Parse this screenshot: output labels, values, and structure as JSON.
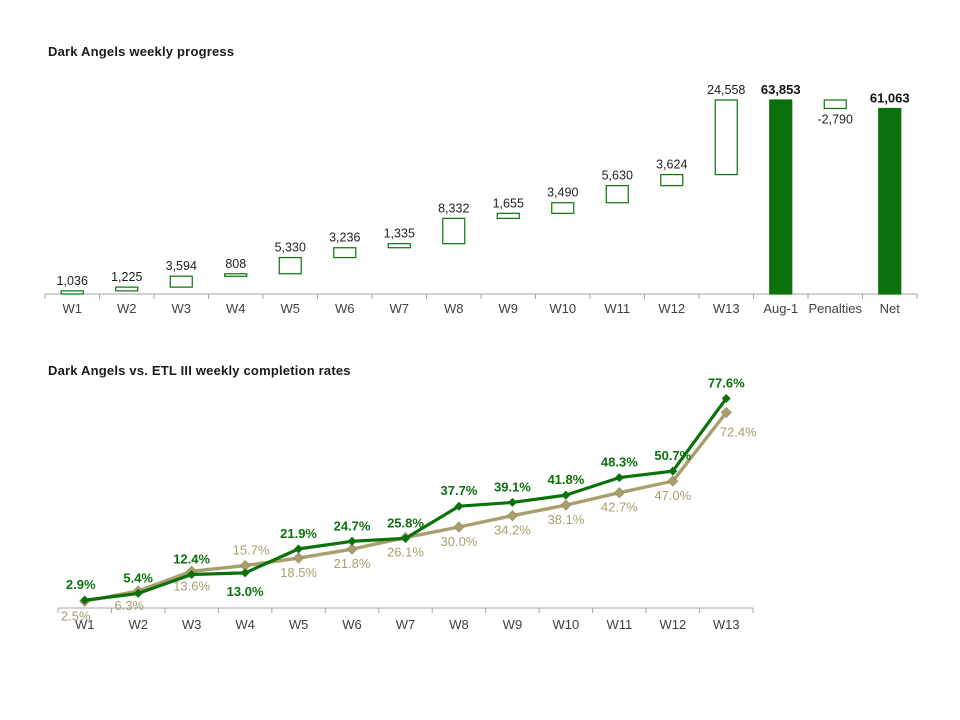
{
  "page": {
    "background": "#ffffff"
  },
  "colors": {
    "dark_angels_green": "#0B720B",
    "etl_tan": "#A89E6E",
    "axis_gray": "#A6A6A6",
    "value_label": "#1F1F1F",
    "category_label": "#3F3F3F",
    "title_text": "#1A1A1A"
  },
  "chart_data": [
    {
      "type": "bar",
      "subtype": "waterfall",
      "title": "Dark Angels weekly progress",
      "grid": false,
      "legend": "none",
      "ylim": [
        0,
        63853
      ],
      "categories": [
        "W1",
        "W2",
        "W3",
        "W4",
        "W5",
        "W6",
        "W7",
        "W8",
        "W9",
        "W10",
        "W11",
        "W12",
        "W13",
        "Aug-1",
        "Penalties",
        "Net"
      ],
      "bars": [
        {
          "category": "W1",
          "value": 1036,
          "label": "1,036",
          "kind": "delta"
        },
        {
          "category": "W2",
          "value": 1225,
          "label": "1,225",
          "kind": "delta"
        },
        {
          "category": "W3",
          "value": 3594,
          "label": "3,594",
          "kind": "delta"
        },
        {
          "category": "W4",
          "value": 808,
          "label": "808",
          "kind": "delta"
        },
        {
          "category": "W5",
          "value": 5330,
          "label": "5,330",
          "kind": "delta"
        },
        {
          "category": "W6",
          "value": 3236,
          "label": "3,236",
          "kind": "delta"
        },
        {
          "category": "W7",
          "value": 1335,
          "label": "1,335",
          "kind": "delta"
        },
        {
          "category": "W8",
          "value": 8332,
          "label": "8,332",
          "kind": "delta"
        },
        {
          "category": "W9",
          "value": 1655,
          "label": "1,655",
          "kind": "delta"
        },
        {
          "category": "W10",
          "value": 3490,
          "label": "3,490",
          "kind": "delta"
        },
        {
          "category": "W11",
          "value": 5630,
          "label": "5,630",
          "kind": "delta"
        },
        {
          "category": "W12",
          "value": 3624,
          "label": "3,624",
          "kind": "delta"
        },
        {
          "category": "W13",
          "value": 24558,
          "label": "24,558",
          "kind": "delta"
        },
        {
          "category": "Aug-1",
          "value": 63853,
          "label": "63,853",
          "kind": "total"
        },
        {
          "category": "Penalties",
          "value": -2790,
          "label": "-2,790",
          "kind": "delta",
          "label_below": true
        },
        {
          "category": "Net",
          "value": 61063,
          "label": "61,063",
          "kind": "total"
        }
      ]
    },
    {
      "type": "line",
      "title": "Dark Angels vs. ETL III weekly completion rates",
      "grid": false,
      "legend": "none",
      "ylim": [
        0,
        80
      ],
      "categories": [
        "W1",
        "W2",
        "W3",
        "W4",
        "W5",
        "W6",
        "W7",
        "W8",
        "W9",
        "W10",
        "W11",
        "W12",
        "W13"
      ],
      "series": [
        {
          "name": "Dark Angels",
          "color": "#0B720B",
          "marker": "diamond",
          "values": [
            2.9,
            5.4,
            12.4,
            13.0,
            21.9,
            24.7,
            25.8,
            37.7,
            39.1,
            41.8,
            48.3,
            50.7,
            77.6
          ],
          "labels": [
            "2.9%",
            "5.4%",
            "12.4%",
            "13.0%",
            "21.9%",
            "24.7%",
            "25.8%",
            "37.7%",
            "39.1%",
            "41.8%",
            "48.3%",
            "50.7%",
            "77.6%"
          ],
          "label_side": [
            "above",
            "above",
            "above",
            "below",
            "above",
            "above",
            "above",
            "above",
            "above",
            "above",
            "above",
            "above",
            "above"
          ]
        },
        {
          "name": "ETL III",
          "color": "#A89E6E",
          "marker": "diamond",
          "values": [
            2.5,
            6.3,
            13.6,
            15.7,
            18.5,
            21.8,
            26.1,
            30.0,
            34.2,
            38.1,
            42.7,
            47.0,
            72.4
          ],
          "labels": [
            "2.5%",
            "6.3%",
            "13.6%",
            "15.7%",
            "18.5%",
            "21.8%",
            "26.1%",
            "30.0%",
            "34.2%",
            "38.1%",
            "42.7%",
            "47.0%",
            "72.4%"
          ],
          "label_side": [
            "below",
            "below",
            "below",
            "above",
            "below",
            "below",
            "below",
            "below",
            "below",
            "below",
            "below",
            "below",
            "below"
          ]
        }
      ]
    }
  ]
}
